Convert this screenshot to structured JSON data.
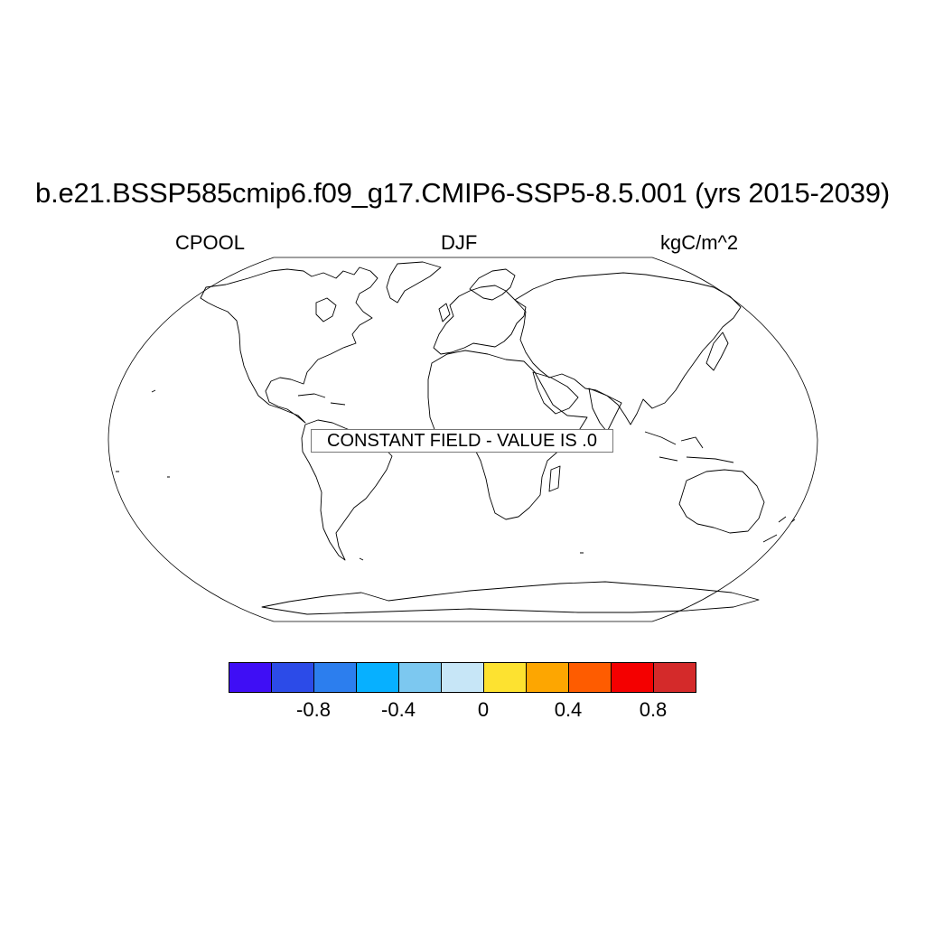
{
  "title": "b.e21.BSSP585cmip6.f09_g17.CMIP6-SSP5-8.5.001 (yrs 2015-2039)",
  "left_label": "CPOOL",
  "center_label": "DJF",
  "right_label": "kgC/m^2",
  "message": "CONSTANT FIELD - VALUE IS .0",
  "colorbar": {
    "colors": [
      "#3f0ef5",
      "#2c4be8",
      "#2c7eee",
      "#07b0ff",
      "#7cc8f0",
      "#c7e6f7",
      "#fde230",
      "#fda601",
      "#fe5c00",
      "#f40000",
      "#d42a2a"
    ],
    "tick_labels": [
      "-0.8",
      "-0.4",
      "0",
      "0.4",
      "0.8"
    ]
  },
  "map": {
    "projection": "Robinson",
    "outline_color": "#000000"
  }
}
